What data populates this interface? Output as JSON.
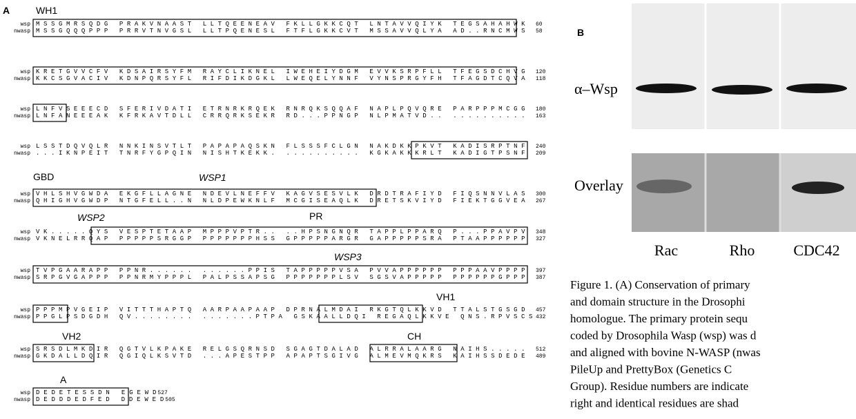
{
  "panel_a": {
    "label": "A",
    "blocks": [
      {
        "wsp": {
          "name": "wsp",
          "seq": "MSSGMRSQDG PRAKVNAAST LLTQEENEAV FKLLGKKCQT LNTAVVQIYK TEGSAHAHWK",
          "end": "60"
        },
        "nwasp": {
          "name": "nwasp",
          "seq": "MSSGQQQPPP PRRVTNVGSL LLTPQENESL FTFLGKKCVT MSSAVVQLYA AD..RNCMWS",
          "end": "58"
        }
      },
      {
        "wsp": {
          "name": "wsp",
          "seq": "KRETGVVCFV KDSAIRSYFM RAYCLIKNEL IWEHEIYDGM EVVKSRPFLL TFEGSDCHVG",
          "end": "120"
        },
        "nwasp": {
          "name": "nwasp",
          "seq": "KKCSGVACIV KDNPQRSYFL RIFDIKDGKL LWEQELYNNF VYNSPRGYFH TFAGDTCQVA",
          "end": "118"
        }
      },
      {
        "wsp": {
          "name": "wsp",
          "seq": "LNFVSEEECD SFERIVDATI ETRNRKRQEK RNRQKSQQAF NAPLPQVQRE PARPPPMCGG",
          "end": "180"
        },
        "nwasp": {
          "name": "nwasp",
          "seq": "LNFANEEEAK KFRKAVTDLL CRRQRKSEKR RD...PPNGP NLPMATVD.. ..........",
          "end": "163"
        }
      },
      {
        "wsp": {
          "name": "wsp",
          "seq": "LSSTDQVQLR NNKINSVTLT PAPAPAQSKN FLSSSFCLGN NAKDKKPKVT KADISRPTNF",
          "end": "240"
        },
        "nwasp": {
          "name": "nwasp",
          "seq": "...IKNPEIT TNRFYGPQIN NISHTKEKK. .......... KGKAKKKRLT KADIGTPSNF",
          "end": "209"
        }
      },
      {
        "wsp": {
          "name": "wsp",
          "seq": "VHLSHVGWDA EKGFLLAGNE NDEVLNEFFV KAGVSESVLK DRDTRAFIYD FIQSNNVLAS",
          "end": "300"
        },
        "nwasp": {
          "name": "nwasp",
          "seq": "QHIGHVGWDP NTGFELL..N NLDPEWKNLF MCGISEAQLK DRETSKVIYD FIEKTGGVEA",
          "end": "267"
        }
      },
      {
        "wsp": {
          "name": "wsp",
          "seq": "VK.....QYS VESPTETAAP MPPPVPTR.. ..HPSNGNQR TAPPLPPARQ P...PPAVPV",
          "end": "348"
        },
        "nwasp": {
          "name": "nwasp",
          "seq": "VKNELRRQAP PPPPPSRGGP PPPPPPPHSS GPPPPPARGR GAPPPPPSRA PTAAPPPPPP",
          "end": "327"
        }
      },
      {
        "wsp": {
          "name": "wsp",
          "seq": "TVPGAARAPP PPNR...... ......PPIS TAPPPPPVSA PVVAPPPPPP PPPAAVPPPP",
          "end": "397"
        },
        "nwasp": {
          "name": "nwasp",
          "seq": "SRPGVGAPPP PPNRMYPPPL PALPSSAPSG PPPPPPPLSV SGSVAPPPPP PPPPPPGPPP",
          "end": "387"
        }
      },
      {
        "wsp": {
          "name": "wsp",
          "seq": "PPPMPVGEIP VITTTHAPTQ AARPAAPAAP DPRNALMDAI RKGTQLKKVD TTALSTGSGD",
          "end": "457"
        },
        "nwasp": {
          "name": "nwasp",
          "seq": "PPGLPSDGDH QV........ .......PTPA GSKAALLDQI REGAQLKKVE QNS.RPVSCS",
          "end": "432"
        }
      },
      {
        "wsp": {
          "name": "wsp",
          "seq": "SRSDLMKDIR QGTVLKPAKE RELGSQRNSD SGAGTDALAD ALRRALAARG NAIHS.....",
          "end": "512"
        },
        "nwasp": {
          "name": "nwasp",
          "seq": "GKDALLDQIR QGIQLKSVTD ...APESTPP APAPTSGIVG ALMEVMQKRS KAIHSSDEDE",
          "end": "489"
        }
      },
      {
        "wsp": {
          "name": "wsp",
          "seq": "DEDETESSDN EGEWD",
          "end": "527"
        },
        "nwasp": {
          "name": "nwasp",
          "seq": "DEDDDEDFED DDEWED",
          "end": "505"
        }
      }
    ],
    "annotations": [
      "WH1",
      "GBD",
      "WSP1",
      "WSP2",
      "PR",
      "WSP3",
      "VH1",
      "VH2",
      "CH",
      "A"
    ]
  },
  "panel_b": {
    "label": "B",
    "row_labels": [
      "α–Wsp",
      "Overlay"
    ],
    "lanes": [
      "Rac",
      "Rho",
      "CDC42"
    ]
  },
  "caption": {
    "lines": [
      "Figure 1. (A) Conservation of primary",
      "and domain structure in the Drosophi",
      "homologue. The primary protein sequ",
      "coded by Drosophila Wasp (wsp) was d",
      "and aligned with bovine N-WASP (nwas",
      "PileUp and PrettyBox (Genetics C",
      "Group). Residue numbers are indicate",
      "right and identical residues are shad"
    ]
  }
}
